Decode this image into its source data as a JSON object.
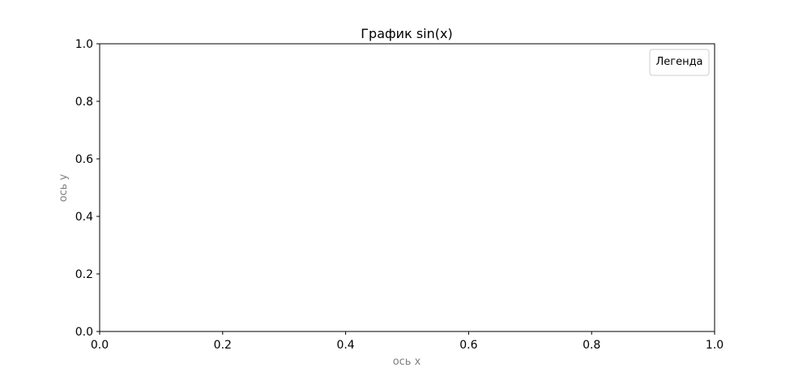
{
  "chart_data": {
    "type": "line",
    "title": "График sin(x)",
    "xlabel": "ось x",
    "ylabel": "ось y",
    "xlim": [
      0.0,
      1.0
    ],
    "ylim": [
      0.0,
      1.0
    ],
    "x_ticks": [
      "0.0",
      "0.2",
      "0.4",
      "0.6",
      "0.8",
      "1.0"
    ],
    "y_ticks": [
      "0.0",
      "0.2",
      "0.4",
      "0.6",
      "0.8",
      "1.0"
    ],
    "series": [],
    "legend": {
      "title": "Легенда",
      "position": "top-right",
      "entries": []
    },
    "grid": false
  },
  "colors": {
    "axis_label": "#808080",
    "text": "#000000",
    "frame": "#000000",
    "legend_border": "#cccccc"
  }
}
